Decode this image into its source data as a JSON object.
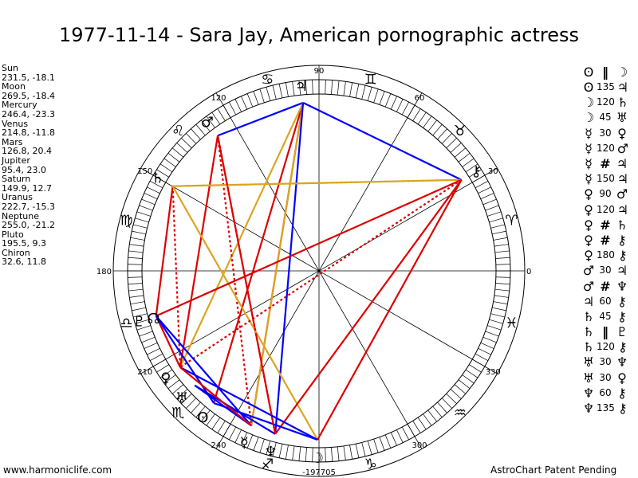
{
  "title": "1977-11-14 - Sara Jay, American pornographic actress",
  "planets": [
    {
      "name": "Sun",
      "coords": "231.5, -18.1",
      "longitude": 231.5,
      "glyph": "sun-glyph"
    },
    {
      "name": "Moon",
      "coords": "269.5, -18.4",
      "longitude": 269.5,
      "glyph": "moon-glyph"
    },
    {
      "name": "Mercury",
      "coords": "246.4, -23.3",
      "longitude": 246.4,
      "glyph": "mercury-glyph"
    },
    {
      "name": "Venus",
      "coords": "214.8, -11.8",
      "longitude": 214.8,
      "glyph": "venus-glyph"
    },
    {
      "name": "Mars",
      "coords": "126.8, 20.4",
      "longitude": 126.8,
      "glyph": "mars-glyph"
    },
    {
      "name": "Jupiter",
      "coords": "95.4, 23.0",
      "longitude": 95.4,
      "glyph": "jupiter-glyph"
    },
    {
      "name": "Saturn",
      "coords": "149.9, 12.7",
      "longitude": 149.9,
      "glyph": "saturn-glyph"
    },
    {
      "name": "Uranus",
      "coords": "222.7, -15.3",
      "longitude": 222.7,
      "glyph": "uranus-glyph"
    },
    {
      "name": "Neptune",
      "coords": "255.0, -21.2",
      "longitude": 255.0,
      "glyph": "neptune-glyph"
    },
    {
      "name": "Pluto",
      "coords": "195.5, 9.3",
      "longitude": 195.5,
      "glyph": "pluto-glyph"
    },
    {
      "name": "Chiron",
      "coords": "32.6, 11.8",
      "longitude": 32.6,
      "glyph": "chiron-glyph"
    }
  ],
  "aspects": [
    {
      "a": "Sun",
      "sym": "‖",
      "angle": "",
      "b": "Moon",
      "color": "#0000ff"
    },
    {
      "a": "Sun",
      "sym": "",
      "angle": "135",
      "b": "Jupiter",
      "color": "#dd0000"
    },
    {
      "a": "Moon",
      "sym": "",
      "angle": "120",
      "b": "Saturn",
      "color": "#dd0000"
    },
    {
      "a": "Moon",
      "sym": "",
      "angle": "45",
      "b": "Uranus",
      "color": "#dd0000"
    },
    {
      "a": "Mercury",
      "sym": "",
      "angle": "30",
      "b": "Venus",
      "color": "#0000ff"
    },
    {
      "a": "Mercury",
      "sym": "",
      "angle": "120",
      "b": "Mars",
      "color": "#dd0000"
    },
    {
      "a": "Mercury",
      "sym": "#",
      "angle": "",
      "b": "Jupiter",
      "color": "#dd0000"
    },
    {
      "a": "Mercury",
      "sym": "",
      "angle": "150",
      "b": "Jupiter",
      "color": "#daa520"
    },
    {
      "a": "Venus",
      "sym": "",
      "angle": "90",
      "b": "Mars",
      "color": "#dd0000"
    },
    {
      "a": "Venus",
      "sym": "",
      "angle": "120",
      "b": "Jupiter",
      "color": "#dd0000"
    },
    {
      "a": "Venus",
      "sym": "#",
      "angle": "",
      "b": "Saturn",
      "color": "#dd0000"
    },
    {
      "a": "Venus",
      "sym": "#",
      "angle": "",
      "b": "Chiron",
      "color": "#dd0000"
    },
    {
      "a": "Venus",
      "sym": "",
      "angle": "180",
      "b": "Chiron",
      "color": "#dd0000"
    },
    {
      "a": "Mars",
      "sym": "",
      "angle": "30",
      "b": "Jupiter",
      "color": "#0000ff"
    },
    {
      "a": "Mars",
      "sym": "#",
      "angle": "",
      "b": "Neptune",
      "color": "#dd0000"
    },
    {
      "a": "Jupiter",
      "sym": "",
      "angle": "60",
      "b": "Chiron",
      "color": "#0000ff"
    },
    {
      "a": "Saturn",
      "sym": "",
      "angle": "45",
      "b": "Chiron",
      "color": "#dd0000"
    },
    {
      "a": "Saturn",
      "sym": "‖",
      "angle": "",
      "b": "Pluto",
      "color": "#0000ff"
    },
    {
      "a": "Saturn",
      "sym": "",
      "angle": "120",
      "b": "Chiron",
      "color": "#dd0000"
    },
    {
      "a": "Uranus",
      "sym": "",
      "angle": "30",
      "b": "Neptune",
      "color": "#0000ff"
    },
    {
      "a": "Uranus",
      "sym": "",
      "angle": "30",
      "b": "Venus",
      "color": "#0000ff"
    },
    {
      "a": "Neptune",
      "sym": "",
      "angle": "60",
      "b": "Chiron",
      "color": "#0000ff"
    },
    {
      "a": "Neptune",
      "sym": "",
      "angle": "135",
      "b": "Chiron",
      "color": "#dd0000"
    }
  ],
  "wheel": {
    "degree_labels": [
      {
        "deg": 0,
        "text": "0"
      },
      {
        "deg": 30,
        "text": "30"
      },
      {
        "deg": 60,
        "text": "60"
      },
      {
        "deg": 90,
        "text": "90"
      },
      {
        "deg": 120,
        "text": "120"
      },
      {
        "deg": 150,
        "text": "150"
      },
      {
        "deg": 180,
        "text": "180"
      },
      {
        "deg": 210,
        "text": "210"
      },
      {
        "deg": 240,
        "text": "240"
      },
      {
        "deg": 270,
        "text": "-197705"
      },
      {
        "deg": 300,
        "text": "300"
      },
      {
        "deg": 330,
        "text": "330"
      }
    ],
    "signs": [
      {
        "name": "aries",
        "glyph": "♈"
      },
      {
        "name": "taurus",
        "glyph": "♉"
      },
      {
        "name": "gemini",
        "glyph": "♊"
      },
      {
        "name": "cancer",
        "glyph": "♋"
      },
      {
        "name": "leo",
        "glyph": "♌"
      },
      {
        "name": "virgo",
        "glyph": "♍"
      },
      {
        "name": "libra",
        "glyph": "♎"
      },
      {
        "name": "scorpio",
        "glyph": "♏"
      },
      {
        "name": "sagittarius",
        "glyph": "♐"
      },
      {
        "name": "capricorn",
        "glyph": "♑"
      },
      {
        "name": "aquarius",
        "glyph": "♒"
      },
      {
        "name": "pisces",
        "glyph": "♓"
      }
    ],
    "node_glyph": "☊",
    "node_longitude": 196
  },
  "glyphs": {
    "Sun": "ʘ",
    "Moon": "☽",
    "Mercury": "☿",
    "Venus": "♀",
    "Mars": "♂",
    "Jupiter": "♃",
    "Saturn": "♄",
    "Uranus": "♅",
    "Neptune": "♆",
    "Pluto": "♇",
    "Chiron": "⚷"
  },
  "lines": [
    {
      "from": "Jupiter",
      "to": "Chiron",
      "color": "#0000ff",
      "style": "solid"
    },
    {
      "from": "Jupiter",
      "to": "Mars",
      "color": "#0000ff",
      "style": "solid"
    },
    {
      "from": "Jupiter",
      "to": "Sun",
      "color": "#dd0000",
      "style": "solid"
    },
    {
      "from": "Jupiter",
      "to": "Mercury",
      "color": "#dd0000",
      "style": "solid"
    },
    {
      "from": "Jupiter",
      "to": "Mercury",
      "color": "#daa520",
      "style": "solid"
    },
    {
      "from": "Jupiter",
      "to": "Venus",
      "color": "#daa520",
      "style": "solid"
    },
    {
      "from": "Jupiter",
      "to": "Neptune",
      "color": "#0000ff",
      "style": "solid"
    },
    {
      "from": "Mars",
      "to": "Mercury",
      "color": "#dd0000",
      "style": "dotted"
    },
    {
      "from": "Mars",
      "to": "Neptune",
      "color": "#dd0000",
      "style": "solid"
    },
    {
      "from": "Mars",
      "to": "Venus",
      "color": "#dd0000",
      "style": "solid"
    },
    {
      "from": "Saturn",
      "to": "Chiron",
      "color": "#daa520",
      "style": "solid"
    },
    {
      "from": "Saturn",
      "to": "Chiron",
      "color": "#daa520",
      "style": "dotted"
    },
    {
      "from": "Saturn",
      "to": "Pluto",
      "color": "#dd0000",
      "style": "solid"
    },
    {
      "from": "Saturn",
      "to": "Venus",
      "color": "#dd0000",
      "style": "dotted"
    },
    {
      "from": "Saturn",
      "to": "Moon",
      "color": "#daa520",
      "style": "solid"
    },
    {
      "from": "Chiron",
      "to": "Pluto",
      "color": "#dd0000",
      "style": "solid"
    },
    {
      "from": "Chiron",
      "to": "Venus",
      "color": "#dd0000",
      "style": "dotted"
    },
    {
      "from": "Chiron",
      "to": "Moon",
      "color": "#dd0000",
      "style": "solid"
    },
    {
      "from": "Chiron",
      "to": "Neptune",
      "color": "#dd0000",
      "style": "solid"
    },
    {
      "from": "Pluto",
      "to": "Venus",
      "color": "#dd0000",
      "style": "solid"
    },
    {
      "from": "Pluto",
      "to": "Sun",
      "color": "#0000ff",
      "style": "solid"
    },
    {
      "from": "Pluto",
      "to": "Mercury",
      "color": "#0000ff",
      "style": "solid"
    },
    {
      "from": "Uranus",
      "to": "Mercury",
      "color": "#0000ff",
      "style": "solid"
    },
    {
      "from": "Uranus",
      "to": "Neptune",
      "color": "#0000ff",
      "style": "solid"
    },
    {
      "from": "Sun",
      "to": "Moon",
      "color": "#0000ff",
      "style": "solid"
    },
    {
      "from": "Moon",
      "to": "Venus",
      "color": "#0000ff",
      "style": "solid"
    },
    {
      "from": "Venus",
      "to": "Mercury",
      "color": "#dd0000",
      "style": "solid"
    },
    {
      "from": "Neptune",
      "to": "Mars",
      "color": "#dd0000",
      "style": "dotted"
    }
  ],
  "footer": {
    "left": "www.harmoniclife.com",
    "right": "AstroChart Patent Pending"
  }
}
